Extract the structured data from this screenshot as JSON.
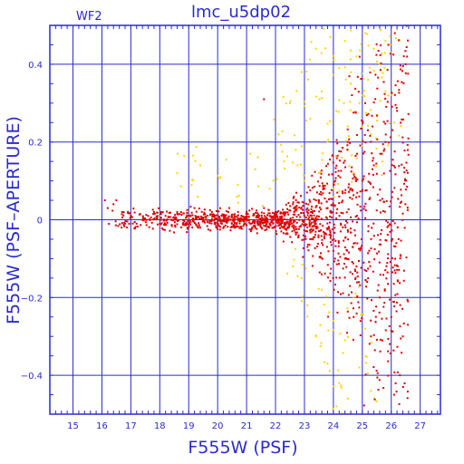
{
  "chart_data": {
    "type": "scatter",
    "title": "lmc_u5dp02",
    "chip_label": "WF2",
    "xlabel": "F555W (PSF)",
    "ylabel": "F555W (PSF–APERTURE)",
    "xlim": [
      14.2,
      27.7
    ],
    "ylim": [
      -0.5,
      0.5
    ],
    "x_ticks": [
      15,
      16,
      17,
      18,
      19,
      20,
      21,
      22,
      23,
      24,
      25,
      26,
      27
    ],
    "y_ticks": [
      -0.4,
      -0.2,
      0,
      0.2,
      0.4
    ],
    "y_tick_labels": [
      "−0.4",
      "−0.2",
      "0",
      "0.2",
      "0.4"
    ],
    "grid": true,
    "colors": {
      "axis": "#2a2ad0",
      "grid": "#2a2ad0",
      "series_red": "#e00000",
      "series_yellow": "#ffd400",
      "background": "#ffffff"
    },
    "series": [
      {
        "color": "#ffd400",
        "description_points": [
          {
            "x": 18.6,
            "y": 0.12
          },
          {
            "x": 19.1,
            "y": 0.09
          },
          {
            "x": 19.4,
            "y": 0.14
          },
          {
            "x": 20.1,
            "y": 0.11
          },
          {
            "x": 20.7,
            "y": 0.09
          },
          {
            "x": 21.3,
            "y": 0.13
          },
          {
            "x": 21.8,
            "y": 0.08
          },
          {
            "x": 22.1,
            "y": 0.22
          },
          {
            "x": 22.3,
            "y": 0.15
          },
          {
            "x": 22.5,
            "y": 0.3
          },
          {
            "x": 22.7,
            "y": 0.18
          },
          {
            "x": 22.9,
            "y": 0.38
          },
          {
            "x": 23.0,
            "y": 0.1
          },
          {
            "x": 23.2,
            "y": 0.26
          },
          {
            "x": 23.4,
            "y": 0.44
          },
          {
            "x": 23.5,
            "y": 0.12
          },
          {
            "x": 23.6,
            "y": 0.33
          },
          {
            "x": 23.8,
            "y": 0.2
          },
          {
            "x": 23.9,
            "y": 0.47
          },
          {
            "x": 24.0,
            "y": 0.08
          },
          {
            "x": 24.1,
            "y": 0.28
          },
          {
            "x": 24.2,
            "y": 0.39
          },
          {
            "x": 24.3,
            "y": 0.16
          },
          {
            "x": 24.4,
            "y": 0.46
          },
          {
            "x": 24.5,
            "y": 0.24
          },
          {
            "x": 24.6,
            "y": 0.35
          },
          {
            "x": 24.7,
            "y": 0.12
          },
          {
            "x": 24.8,
            "y": 0.42
          },
          {
            "x": 24.9,
            "y": 0.3
          },
          {
            "x": 25.0,
            "y": 0.19
          },
          {
            "x": 25.1,
            "y": 0.48
          },
          {
            "x": 25.2,
            "y": 0.36
          },
          {
            "x": 25.3,
            "y": 0.22
          },
          {
            "x": 25.4,
            "y": 0.44
          },
          {
            "x": 25.5,
            "y": 0.27
          },
          {
            "x": 25.6,
            "y": 0.4
          },
          {
            "x": 25.7,
            "y": 0.15
          },
          {
            "x": 25.8,
            "y": 0.46
          },
          {
            "x": 25.9,
            "y": 0.32
          },
          {
            "x": 26.0,
            "y": 0.43
          },
          {
            "x": 26.1,
            "y": 0.25
          },
          {
            "x": 26.2,
            "y": 0.49
          },
          {
            "x": 23.1,
            "y": -0.22
          },
          {
            "x": 23.4,
            "y": -0.3
          },
          {
            "x": 23.6,
            "y": -0.18
          },
          {
            "x": 23.8,
            "y": -0.37
          },
          {
            "x": 24.0,
            "y": -0.26
          },
          {
            "x": 24.2,
            "y": -0.42
          },
          {
            "x": 24.4,
            "y": -0.31
          },
          {
            "x": 24.5,
            "y": -0.46
          },
          {
            "x": 24.7,
            "y": -0.2
          },
          {
            "x": 24.9,
            "y": -0.38
          },
          {
            "x": 25.1,
            "y": -0.28
          },
          {
            "x": 25.3,
            "y": -0.44
          },
          {
            "x": 22.6,
            "y": -0.12
          },
          {
            "x": 22.9,
            "y": -0.15
          },
          {
            "x": 24.1,
            "y": -0.48
          }
        ]
      },
      {
        "color": "#e00000",
        "description_points": [
          {
            "x": 16.1,
            "y": 0.05
          },
          {
            "x": 16.2,
            "y": 0.03
          },
          {
            "x": 16.4,
            "y": 0.04
          },
          {
            "x": 16.5,
            "y": 0.05
          },
          {
            "x": 16.7,
            "y": 0.02
          },
          {
            "x": 16.8,
            "y": -0.01
          },
          {
            "x": 17.0,
            "y": 0.01
          },
          {
            "x": 17.2,
            "y": -0.01
          },
          {
            "x": 17.4,
            "y": 0.0
          },
          {
            "x": 17.6,
            "y": 0.01
          },
          {
            "x": 17.8,
            "y": 0.02
          },
          {
            "x": 18.0,
            "y": -0.01
          },
          {
            "x": 18.2,
            "y": 0.01
          },
          {
            "x": 18.4,
            "y": 0.0
          },
          {
            "x": 18.6,
            "y": 0.02
          },
          {
            "x": 18.8,
            "y": -0.01
          },
          {
            "x": 19.0,
            "y": 0.01
          },
          {
            "x": 19.2,
            "y": 0.03
          },
          {
            "x": 19.4,
            "y": -0.02
          },
          {
            "x": 19.6,
            "y": 0.0
          },
          {
            "x": 19.8,
            "y": 0.02
          },
          {
            "x": 20.0,
            "y": -0.01
          },
          {
            "x": 20.2,
            "y": 0.01
          },
          {
            "x": 20.4,
            "y": 0.03
          },
          {
            "x": 20.6,
            "y": -0.02
          },
          {
            "x": 20.8,
            "y": 0.0
          },
          {
            "x": 21.0,
            "y": 0.02
          },
          {
            "x": 21.2,
            "y": -0.02
          },
          {
            "x": 21.4,
            "y": 0.01
          },
          {
            "x": 21.6,
            "y": 0.03
          },
          {
            "x": 21.8,
            "y": -0.01
          },
          {
            "x": 22.0,
            "y": 0.02
          },
          {
            "x": 22.2,
            "y": -0.03
          },
          {
            "x": 22.4,
            "y": 0.0
          },
          {
            "x": 22.6,
            "y": 0.04
          },
          {
            "x": 22.8,
            "y": -0.04
          },
          {
            "x": 23.0,
            "y": 0.01
          },
          {
            "x": 23.2,
            "y": -0.05
          },
          {
            "x": 23.4,
            "y": 0.05
          },
          {
            "x": 23.6,
            "y": -0.06
          },
          {
            "x": 23.8,
            "y": 0.03
          },
          {
            "x": 24.0,
            "y": -0.08
          },
          {
            "x": 24.2,
            "y": 0.06
          },
          {
            "x": 24.4,
            "y": -0.1
          },
          {
            "x": 24.6,
            "y": 0.08
          },
          {
            "x": 24.8,
            "y": -0.12
          },
          {
            "x": 25.0,
            "y": 0.1
          },
          {
            "x": 25.2,
            "y": -0.15
          },
          {
            "x": 25.4,
            "y": 0.14
          },
          {
            "x": 25.6,
            "y": -0.2
          },
          {
            "x": 25.8,
            "y": 0.2
          },
          {
            "x": 26.0,
            "y": -0.25
          },
          {
            "x": 26.2,
            "y": 0.28
          },
          {
            "x": 26.4,
            "y": -0.3
          },
          {
            "x": 26.5,
            "y": 0.4
          },
          {
            "x": 26.3,
            "y": -0.4
          },
          {
            "x": 25.9,
            "y": 0.45
          },
          {
            "x": 26.1,
            "y": -0.45
          },
          {
            "x": 25.1,
            "y": 0.3
          },
          {
            "x": 25.3,
            "y": -0.3
          },
          {
            "x": 24.5,
            "y": 0.2
          },
          {
            "x": 24.7,
            "y": -0.25
          },
          {
            "x": 21.6,
            "y": 0.31
          }
        ]
      }
    ]
  }
}
